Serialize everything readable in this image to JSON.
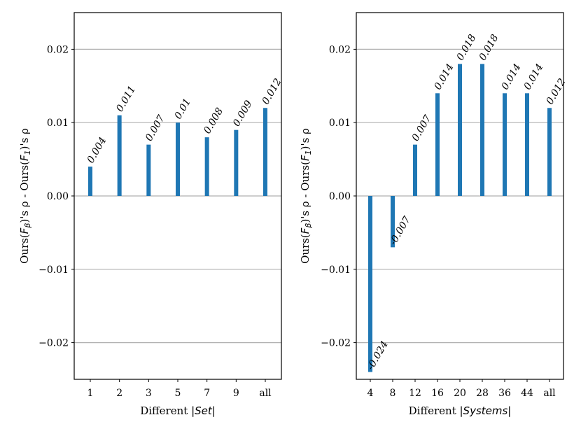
{
  "chart_data": [
    {
      "type": "bar",
      "xlabel_prefix": "Different ",
      "xlabel_math": "|Set|",
      "ylabel_prefix": "Ours(",
      "ylabel_math1": "F",
      "ylabel_sub1": "β",
      "ylabel_mid": ")'s ρ - Ours(",
      "ylabel_math2": "F",
      "ylabel_sub2": "1",
      "ylabel_suffix": ")'s ρ",
      "categories": [
        "1",
        "2",
        "3",
        "5",
        "7",
        "9",
        "all"
      ],
      "values": [
        0.004,
        0.011,
        0.007,
        0.01,
        0.008,
        0.009,
        0.012
      ],
      "value_labels": [
        "0.004",
        "0.011",
        "0.007",
        "0.01",
        "0.008",
        "0.009",
        "0.012"
      ],
      "ylim": [
        -0.025,
        0.025
      ],
      "yticks": [
        -0.02,
        -0.01,
        0.0,
        0.01,
        0.02
      ],
      "ytick_labels": [
        "−0.02",
        "−0.01",
        "0.00",
        "0.01",
        "0.02"
      ],
      "grid": "horizontal",
      "color": "#1f77b4"
    },
    {
      "type": "bar",
      "xlabel_prefix": "Different ",
      "xlabel_math": "|Systems|",
      "ylabel_prefix": "Ours(",
      "ylabel_math1": "F",
      "ylabel_sub1": "β",
      "ylabel_mid": ")'s ρ - Ours(",
      "ylabel_math2": "F",
      "ylabel_sub2": "1",
      "ylabel_suffix": ")'s ρ",
      "categories": [
        "4",
        "8",
        "12",
        "16",
        "20",
        "28",
        "36",
        "44",
        "all"
      ],
      "values": [
        -0.024,
        -0.007,
        0.007,
        0.014,
        0.018,
        0.018,
        0.014,
        0.014,
        0.012
      ],
      "value_labels": [
        "-0.024",
        "-0.007",
        "0.007",
        "0.014",
        "0.018",
        "0.018",
        "0.014",
        "0.014",
        "0.012"
      ],
      "ylim": [
        -0.025,
        0.025
      ],
      "yticks": [
        -0.02,
        -0.01,
        0.0,
        0.01,
        0.02
      ],
      "ytick_labels": [
        "−0.02",
        "−0.01",
        "0.00",
        "0.01",
        "0.02"
      ],
      "grid": "horizontal",
      "color": "#1f77b4"
    }
  ]
}
